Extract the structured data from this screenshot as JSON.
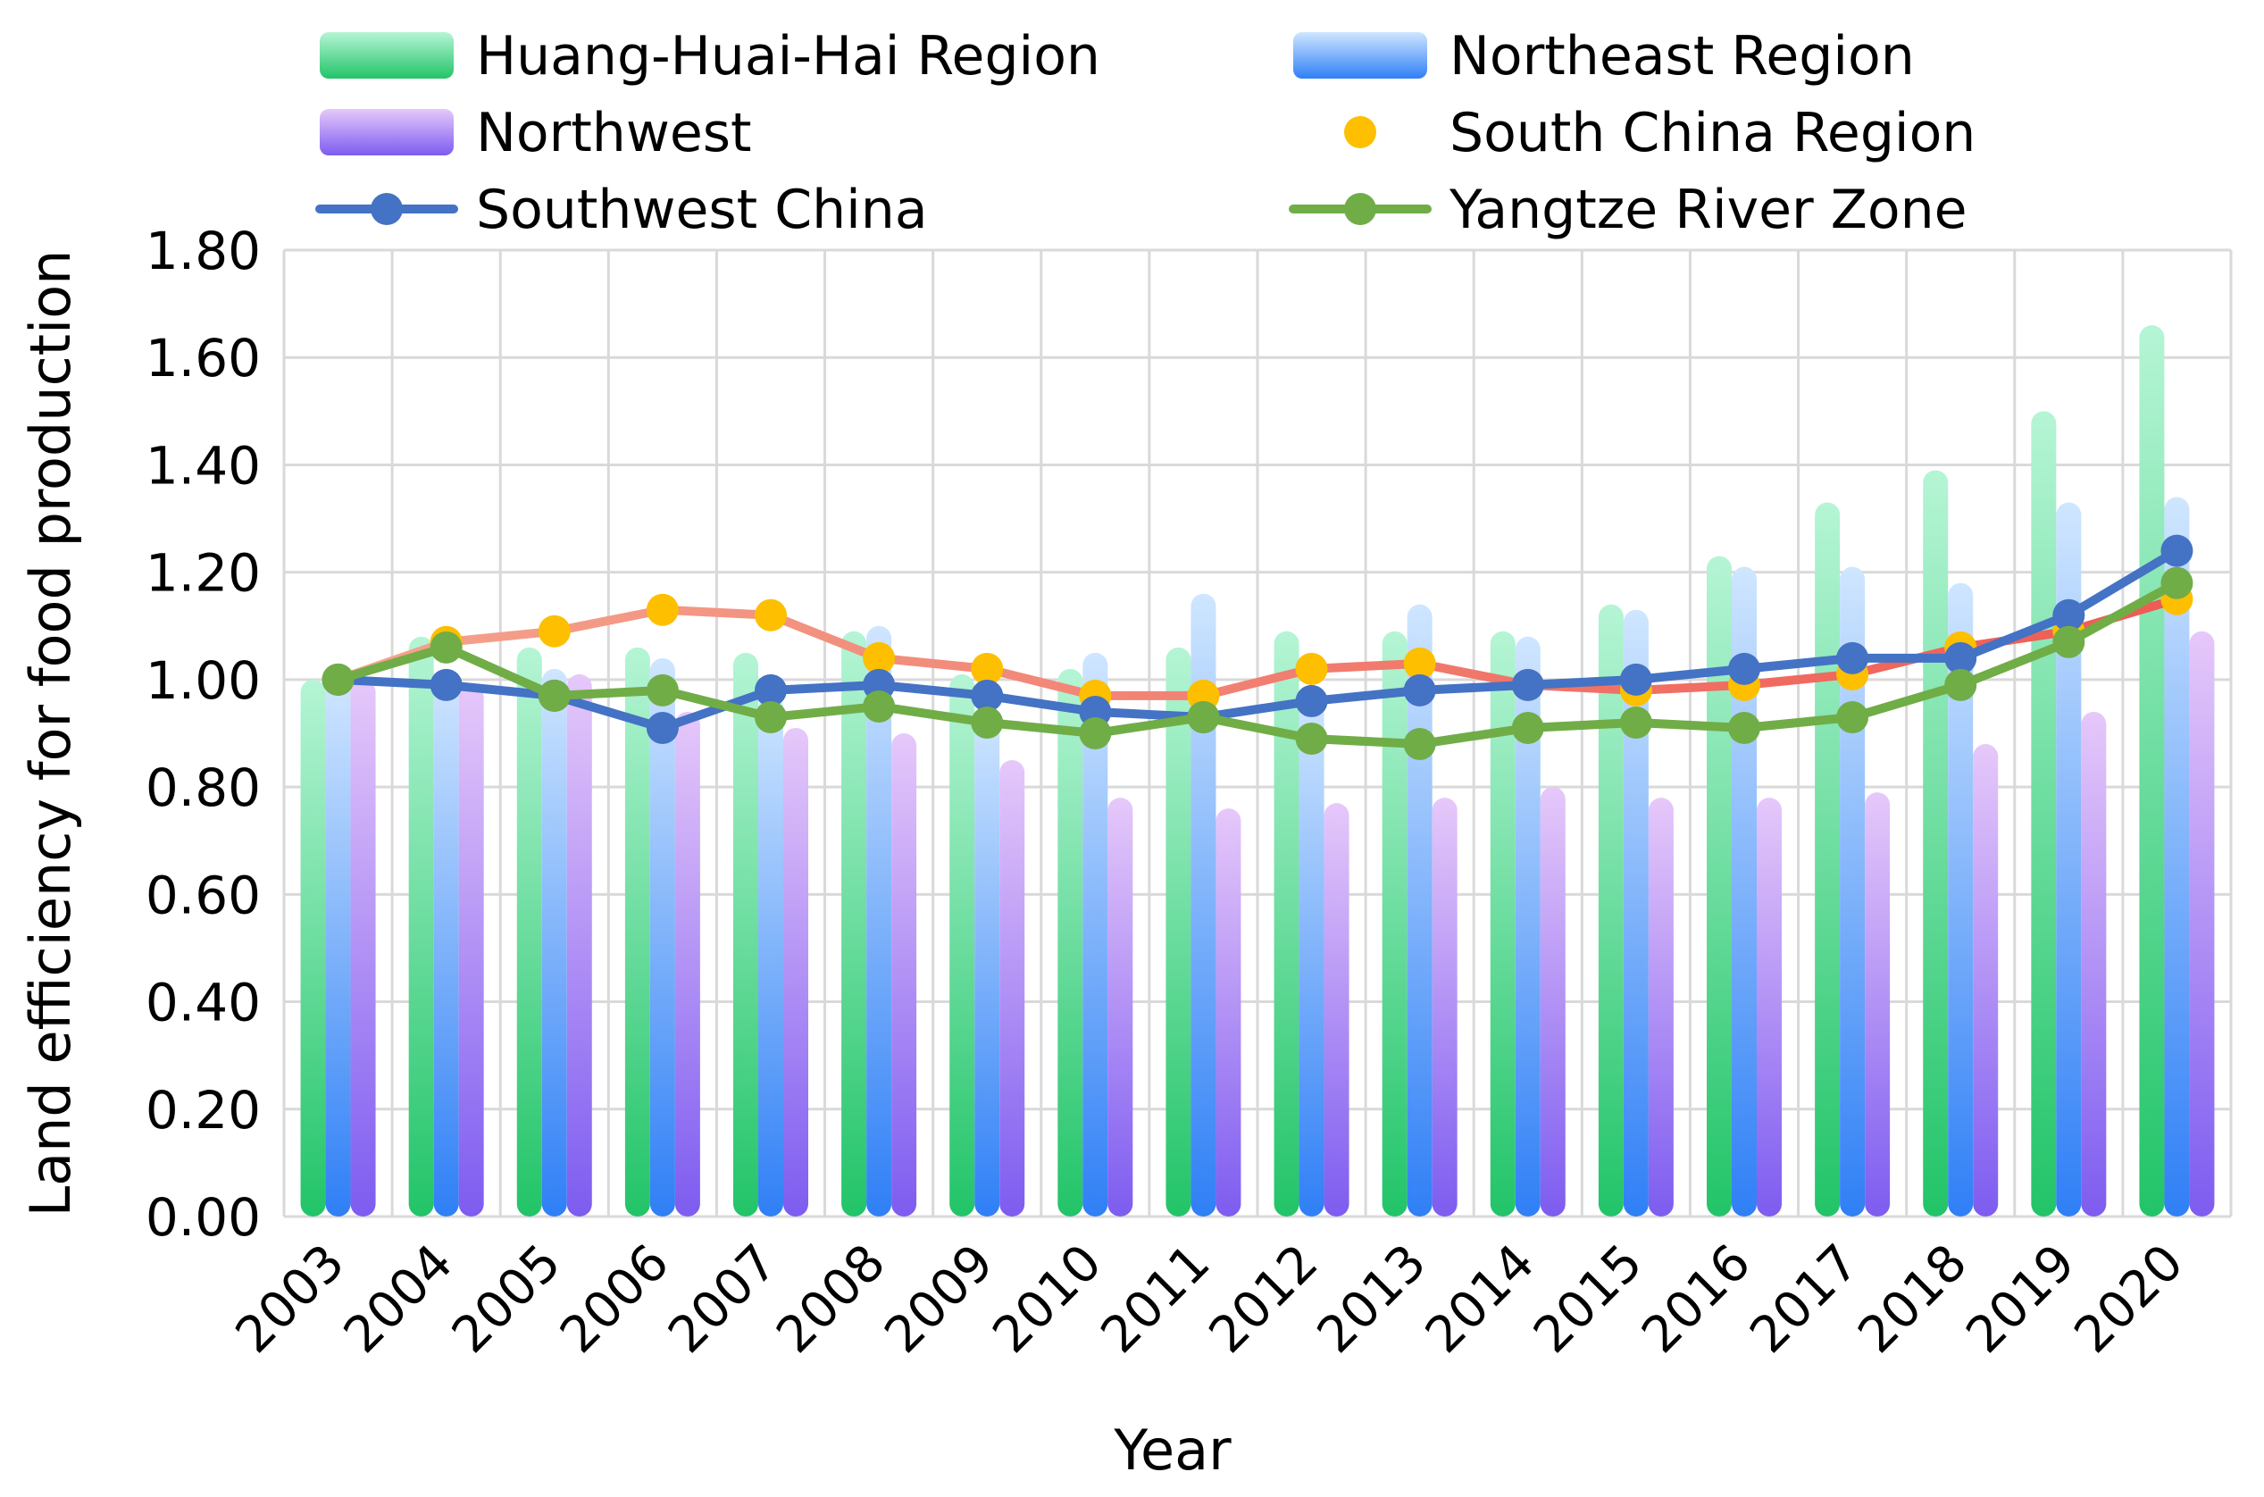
{
  "chart_data": {
    "type": "bar",
    "title": "",
    "xlabel": "Year",
    "ylabel": "Land efficiency for food production",
    "ylim": [
      0,
      1.8
    ],
    "yticks": [
      "0.00",
      "0.20",
      "0.40",
      "0.60",
      "0.80",
      "1.00",
      "1.20",
      "1.40",
      "1.60",
      "1.80"
    ],
    "grid": true,
    "legend_position": "top",
    "categories": [
      "2003",
      "2004",
      "2005",
      "2006",
      "2007",
      "2008",
      "2009",
      "2010",
      "2011",
      "2012",
      "2013",
      "2014",
      "2015",
      "2016",
      "2017",
      "2018",
      "2019",
      "2020"
    ],
    "bar_series": [
      {
        "name": "Huang-Huai-Hai Region",
        "color_top": "#b5f5d5",
        "color_bottom": "#22c468",
        "values": [
          1.0,
          1.08,
          1.06,
          1.06,
          1.05,
          1.09,
          1.01,
          1.02,
          1.06,
          1.09,
          1.09,
          1.09,
          1.14,
          1.23,
          1.33,
          1.39,
          1.5,
          1.66
        ]
      },
      {
        "name": "Northeast Region",
        "color_top": "#cfe6ff",
        "color_bottom": "#2f7ff6",
        "values": [
          1.0,
          1.01,
          1.02,
          1.04,
          0.97,
          1.1,
          0.94,
          1.05,
          1.16,
          0.97,
          1.14,
          1.08,
          1.13,
          1.21,
          1.21,
          1.18,
          1.33,
          1.34
        ]
      },
      {
        "name": "Northwest",
        "color_top": "#e6c8fa",
        "color_bottom": "#7d5cf0",
        "values": [
          1.0,
          0.99,
          1.01,
          0.94,
          0.91,
          0.9,
          0.85,
          0.78,
          0.76,
          0.77,
          0.78,
          0.8,
          0.78,
          0.78,
          0.79,
          0.88,
          0.94,
          1.09
        ]
      }
    ],
    "line_series": [
      {
        "name": "South China Region",
        "line_color": "#f4a48e",
        "line_color_end": "#ee5b54",
        "marker_color": "#fdbf00",
        "values": [
          1.0,
          1.07,
          1.09,
          1.13,
          1.12,
          1.04,
          1.02,
          0.97,
          0.97,
          1.02,
          1.03,
          0.99,
          0.98,
          0.99,
          1.01,
          1.06,
          1.09,
          1.15
        ]
      },
      {
        "name": "Southwest China",
        "line_color": "#4472c4",
        "marker_color": "#4472c4",
        "values": [
          1.0,
          0.99,
          0.97,
          0.91,
          0.98,
          0.99,
          0.97,
          0.94,
          0.93,
          0.96,
          0.98,
          0.99,
          1.0,
          1.02,
          1.04,
          1.04,
          1.12,
          1.24
        ]
      },
      {
        "name": "Yangtze River Zone",
        "line_color": "#70ad47",
        "marker_color": "#70ad47",
        "values": [
          1.0,
          1.06,
          0.97,
          0.98,
          0.93,
          0.95,
          0.92,
          0.9,
          0.93,
          0.89,
          0.88,
          0.91,
          0.92,
          0.91,
          0.93,
          0.99,
          1.07,
          1.18
        ]
      }
    ],
    "legend": [
      {
        "label": "Huang-Huai-Hai Region",
        "kind": "bar",
        "series": 0
      },
      {
        "label": "Northeast Region",
        "kind": "bar",
        "series": 1
      },
      {
        "label": "Northwest",
        "kind": "bar",
        "series": 2
      },
      {
        "label": "South China Region",
        "kind": "line",
        "series": 0
      },
      {
        "label": "Southwest China",
        "kind": "line",
        "series": 1
      },
      {
        "label": "Yangtze River Zone",
        "kind": "line",
        "series": 2
      }
    ]
  }
}
